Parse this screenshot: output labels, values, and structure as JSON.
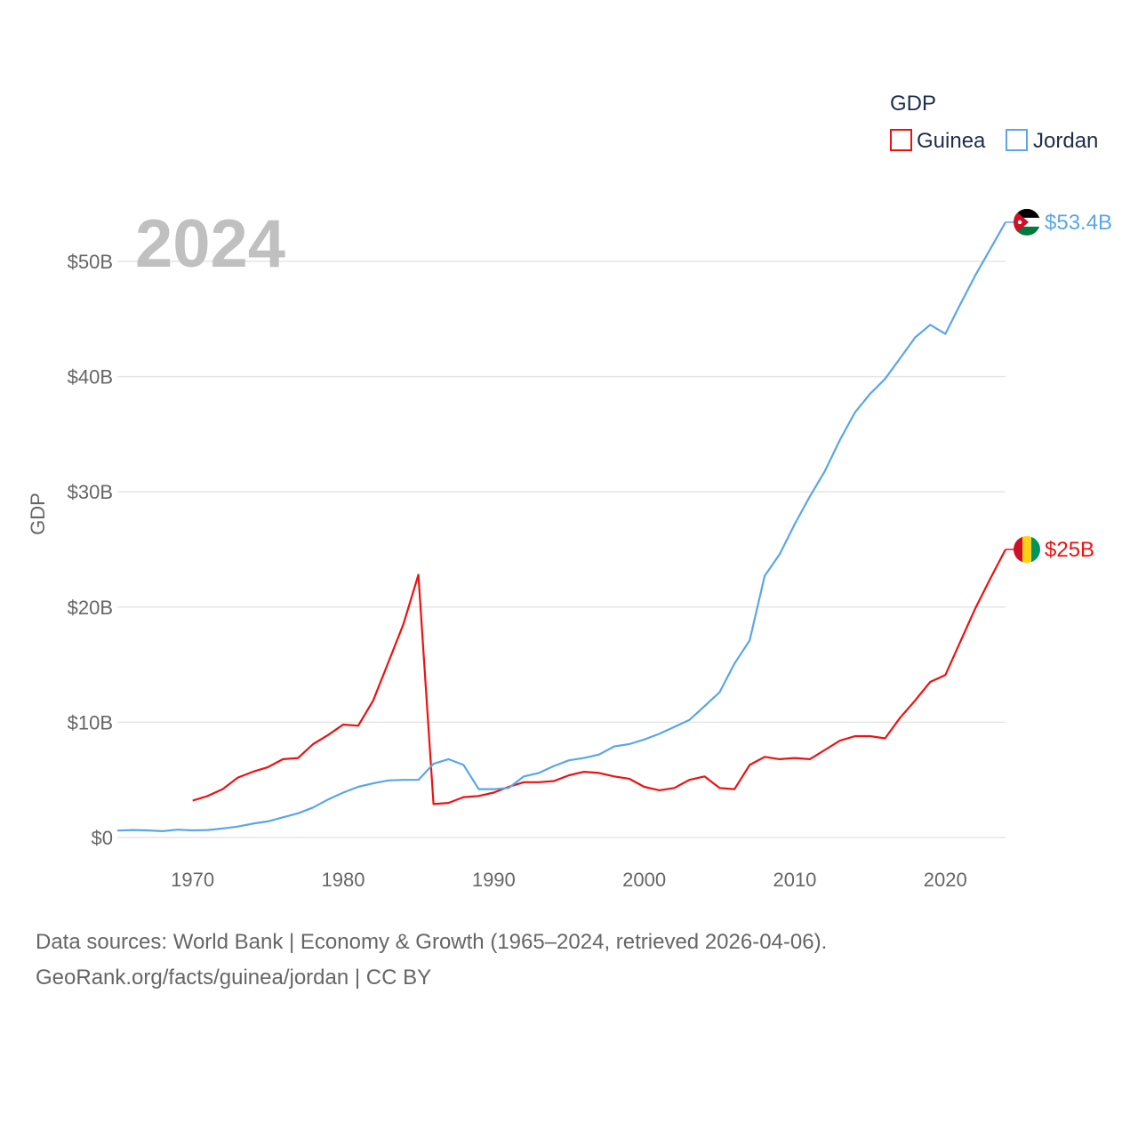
{
  "chart_data": {
    "type": "line",
    "title": "GDP",
    "year_label": "2024",
    "xlabel": "",
    "ylabel": "GDP",
    "xlim": [
      1965,
      2024
    ],
    "ylim": [
      0,
      55
    ],
    "y_unit": "billion USD",
    "x_ticks": [
      1970,
      1980,
      1990,
      2000,
      2010,
      2020
    ],
    "x_tick_labels": [
      "1970",
      "1980",
      "1990",
      "2000",
      "2010",
      "2020"
    ],
    "y_ticks": [
      0,
      10,
      20,
      30,
      40,
      50
    ],
    "y_tick_labels": [
      "$0",
      "$10B",
      "$20B",
      "$30B",
      "$40B",
      "$50B"
    ],
    "legend": {
      "title": "GDP",
      "placement": "top-right",
      "entries": [
        "Guinea",
        "Jordan"
      ]
    },
    "series": [
      {
        "name": "Guinea",
        "color": "#ee1111",
        "end_label": "$25B",
        "flag_colors": [
          "#ce1126",
          "#fcd116",
          "#009460"
        ],
        "x": [
          1970,
          1971,
          1972,
          1973,
          1974,
          1975,
          1976,
          1977,
          1978,
          1979,
          1980,
          1981,
          1982,
          1983,
          1984,
          1985,
          1986,
          1987,
          1988,
          1989,
          1990,
          1991,
          1992,
          1993,
          1994,
          1995,
          1996,
          1997,
          1998,
          1999,
          2000,
          2001,
          2002,
          2003,
          2004,
          2005,
          2006,
          2007,
          2008,
          2009,
          2010,
          2011,
          2012,
          2013,
          2014,
          2015,
          2016,
          2017,
          2018,
          2019,
          2020,
          2021,
          2022,
          2023,
          2024
        ],
        "values": [
          3.2,
          3.6,
          4.2,
          5.2,
          5.7,
          6.1,
          6.8,
          6.9,
          8.1,
          8.9,
          9.8,
          9.7,
          11.9,
          15.2,
          18.5,
          22.8,
          2.9,
          3.0,
          3.5,
          3.6,
          3.9,
          4.4,
          4.8,
          4.8,
          4.9,
          5.4,
          5.7,
          5.6,
          5.3,
          5.1,
          4.4,
          4.1,
          4.3,
          5.0,
          5.3,
          4.3,
          4.2,
          6.3,
          7.0,
          6.8,
          6.9,
          6.8,
          7.6,
          8.4,
          8.8,
          8.8,
          8.6,
          10.4,
          11.9,
          13.5,
          14.1,
          17.0,
          19.9,
          22.5,
          25.0
        ]
      },
      {
        "name": "Jordan",
        "color": "#5aa6e6",
        "end_label": "$53.4B",
        "flag_colors": [
          "#000000",
          "#ffffff",
          "#007a3d",
          "#ce1126"
        ],
        "x": [
          1965,
          1966,
          1967,
          1968,
          1969,
          1970,
          1971,
          1972,
          1973,
          1974,
          1975,
          1976,
          1977,
          1978,
          1979,
          1980,
          1981,
          1982,
          1983,
          1984,
          1985,
          1986,
          1987,
          1988,
          1989,
          1990,
          1991,
          1992,
          1993,
          1994,
          1995,
          1996,
          1997,
          1998,
          1999,
          2000,
          2001,
          2002,
          2003,
          2004,
          2005,
          2006,
          2007,
          2008,
          2009,
          2010,
          2011,
          2012,
          2013,
          2014,
          2015,
          2016,
          2017,
          2018,
          2019,
          2020,
          2021,
          2022,
          2023,
          2024
        ],
        "values": [
          0.6,
          0.65,
          0.62,
          0.55,
          0.68,
          0.62,
          0.65,
          0.78,
          0.95,
          1.2,
          1.4,
          1.75,
          2.1,
          2.6,
          3.3,
          3.9,
          4.4,
          4.7,
          4.95,
          5.0,
          5.0,
          6.4,
          6.8,
          6.3,
          4.2,
          4.2,
          4.3,
          5.3,
          5.6,
          6.2,
          6.7,
          6.9,
          7.2,
          7.9,
          8.1,
          8.5,
          9.0,
          9.6,
          10.2,
          11.4,
          12.6,
          15.1,
          17.1,
          22.7,
          24.6,
          27.2,
          29.6,
          31.8,
          34.5,
          36.9,
          38.5,
          39.8,
          41.6,
          43.4,
          44.5,
          43.7,
          46.3,
          48.8,
          51.1,
          53.4
        ]
      }
    ]
  },
  "footer": {
    "line1": "Data sources: World Bank | Economy & Growth (1965–2024, retrieved 2026-04-06).",
    "line2": "GeoRank.org/facts/guinea/jordan | CC BY"
  }
}
